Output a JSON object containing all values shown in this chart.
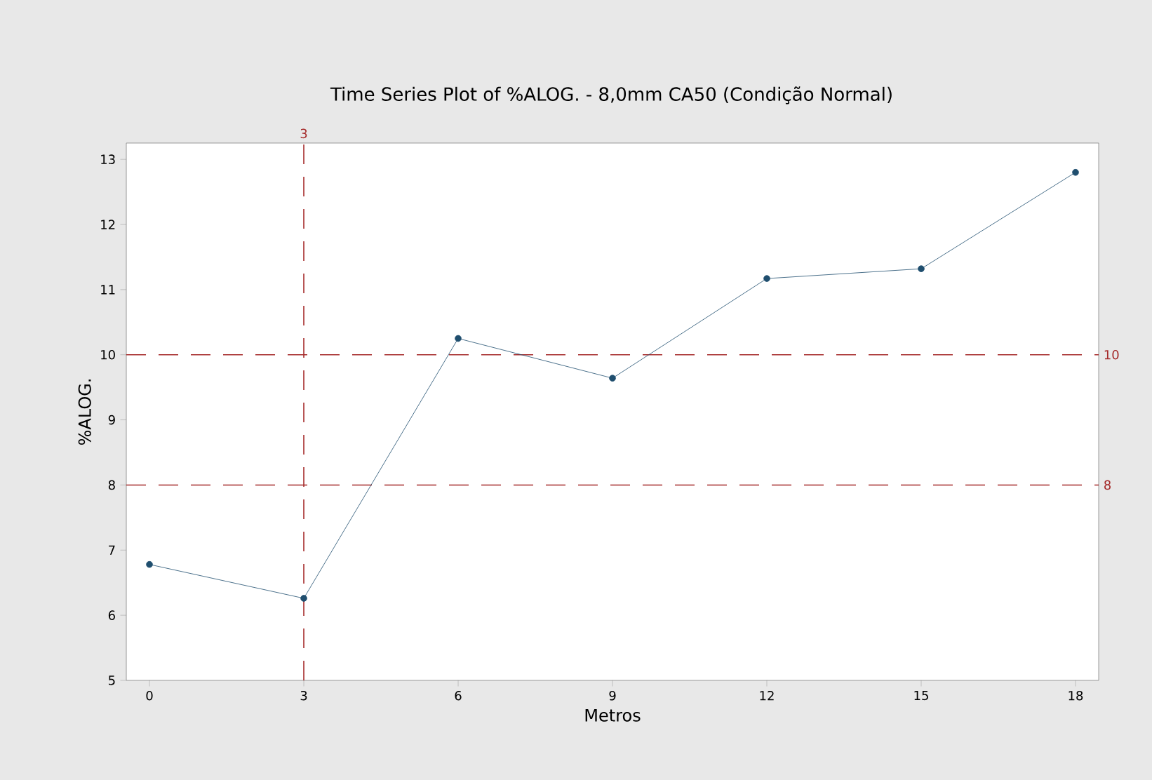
{
  "chart_data": {
    "type": "line",
    "title": "Time Series Plot of %ALOG. - 8,0mm CA50 (Condição Normal)",
    "xlabel": "Metros",
    "ylabel": "%ALOG.",
    "x": [
      0,
      3,
      6,
      9,
      12,
      15,
      18
    ],
    "series": [
      {
        "color": "#1f4e6e",
        "values": [
          6.78,
          6.26,
          10.25,
          9.64,
          11.17,
          11.32,
          12.8
        ]
      }
    ],
    "xlim": [
      -0.45,
      18.45
    ],
    "ylim": [
      5,
      13.25
    ],
    "xticks": [
      0,
      3,
      6,
      9,
      12,
      15,
      18
    ],
    "yticks": [
      5,
      6,
      7,
      8,
      9,
      10,
      11,
      12,
      13
    ],
    "grid": false,
    "marker": "circle",
    "line_style": "solid",
    "ref_lines": [
      {
        "axis": "x",
        "value": 3,
        "label": "3",
        "color": "#a52a2a",
        "line_style": "dashed"
      },
      {
        "axis": "y",
        "value": 10,
        "label": "10",
        "color": "#a52a2a",
        "line_style": "dashed"
      },
      {
        "axis": "y",
        "value": 8,
        "label": "8",
        "color": "#a52a2a",
        "line_style": "dashed"
      }
    ]
  }
}
